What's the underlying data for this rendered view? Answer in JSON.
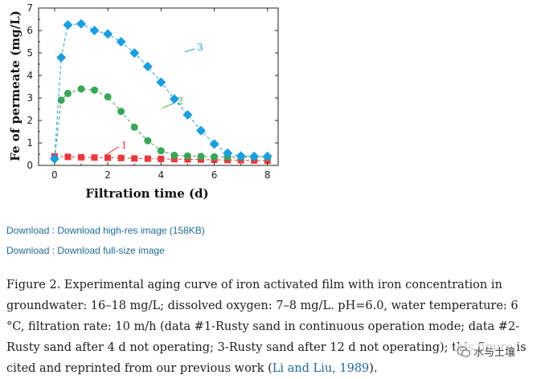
{
  "chart_data": {
    "type": "scatter",
    "title": "",
    "xlabel": "Filtration time (d)",
    "ylabel": "Fe of permeate (mg/L)",
    "xlim": [
      -0.6,
      8.4
    ],
    "ylim": [
      0,
      7
    ],
    "xticks": [
      "0",
      "2",
      "4",
      "6",
      "8"
    ],
    "yticks": [
      "0",
      "1",
      "2",
      "3",
      "4",
      "5",
      "6",
      "7"
    ],
    "series": [
      {
        "name": "1",
        "label": "1",
        "marker": "square",
        "color": "#e8383d",
        "x": [
          0,
          0.5,
          1,
          1.5,
          2,
          2.5,
          3,
          3.5,
          4,
          4.5,
          5,
          5.5,
          6,
          6.5,
          7,
          7.5,
          8
        ],
        "values": [
          0.4,
          0.38,
          0.36,
          0.35,
          0.34,
          0.33,
          0.31,
          0.3,
          0.29,
          0.28,
          0.27,
          0.26,
          0.25,
          0.24,
          0.23,
          0.22,
          0.21
        ]
      },
      {
        "name": "2",
        "label": "2",
        "marker": "circle",
        "color": "#3aa655",
        "x": [
          0,
          0.25,
          0.5,
          1,
          1.5,
          2,
          2.5,
          3,
          3.5,
          4,
          4.5,
          5,
          5.5,
          6,
          6.5,
          7,
          7.5,
          8
        ],
        "values": [
          0.3,
          2.9,
          3.2,
          3.4,
          3.35,
          3.05,
          2.4,
          1.7,
          1.1,
          0.65,
          0.45,
          0.42,
          0.4,
          0.38,
          0.38,
          0.37,
          0.37,
          0.36
        ]
      },
      {
        "name": "3",
        "label": "3",
        "marker": "diamond",
        "color": "#1a9ee0",
        "x": [
          0,
          0.25,
          0.5,
          1,
          1.5,
          2,
          2.5,
          3,
          3.5,
          4,
          4.5,
          5,
          5.5,
          6,
          6.5,
          7,
          7.5,
          8
        ],
        "values": [
          0.3,
          4.8,
          6.25,
          6.3,
          6.0,
          5.85,
          5.5,
          5.0,
          4.4,
          3.7,
          2.95,
          2.25,
          1.55,
          0.95,
          0.55,
          0.42,
          0.4,
          0.4
        ]
      }
    ]
  },
  "links": {
    "high_res": "Download : Download high-res image (158KB)",
    "full_size": "Download : Download full-size image"
  },
  "caption": {
    "text": "Figure 2. Experimental aging curve of iron activated film with iron concentration in groundwater: 16–18 mg/L; dissolved oxygen: 7–8 mg/L. pH=6.0, water temperature: 6 °C, filtration rate: 10 m/h (data #1-Rusty sand in continuous operation mode; data #2-Rusty sand after 4 d not operating; 3-Rusty sand after 12 d not operating); this figure is cited and reprinted from our previous work (",
    "citation": "Li and Liu, 1989",
    "end": ")."
  },
  "watermark": {
    "text": "水与土壤"
  }
}
